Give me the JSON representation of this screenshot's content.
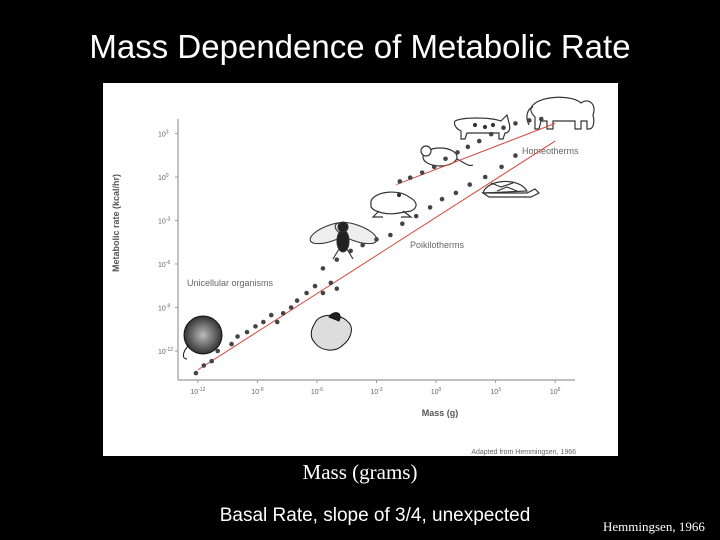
{
  "slide": {
    "title": "Mass Dependence of Metabolic Rate",
    "caption": "Mass (grams)",
    "subcaption": "Basal Rate, slope of 3/4, unexpected",
    "credit": "Hemmingsen, 1966"
  },
  "chart_data": {
    "type": "scatter",
    "xlabel": "Mass (g)",
    "ylabel": "Metabolic rate (kcal/hr)",
    "x_scale": "log",
    "y_scale": "log",
    "xlim": [
      1e-13,
      10000000.0
    ],
    "ylim": [
      1e-14,
      10000.0
    ],
    "x_ticks": [
      {
        "value": 1e-12,
        "base": "10",
        "exp": "-12"
      },
      {
        "value": 1e-09,
        "base": "10",
        "exp": "-9"
      },
      {
        "value": 1e-06,
        "base": "10",
        "exp": "-6"
      },
      {
        "value": 0.001,
        "base": "10",
        "exp": "-3"
      },
      {
        "value": 1,
        "base": "10",
        "exp": "0"
      },
      {
        "value": 1000.0,
        "base": "10",
        "exp": "3"
      },
      {
        "value": 1000000.0,
        "base": "10",
        "exp": "6"
      }
    ],
    "y_ticks": [
      {
        "value": 1000.0,
        "base": "10",
        "exp": "3"
      },
      {
        "value": 1,
        "base": "10",
        "exp": "0"
      },
      {
        "value": 0.001,
        "base": "10",
        "exp": "-3"
      },
      {
        "value": 1e-06,
        "base": "10",
        "exp": "-6"
      },
      {
        "value": 1e-09,
        "base": "10",
        "exp": "-9"
      },
      {
        "value": 1e-12,
        "base": "10",
        "exp": "-12"
      }
    ],
    "annotations": {
      "homeotherms": "Homeotherms",
      "poikilotherms": "Poikilotherms",
      "unicellular": "Unicellular organisms",
      "source": "Adapted from Hemmingsen, 1966"
    },
    "fit_lines": [
      {
        "group": "Homeotherms",
        "color": "#d2483b",
        "points": [
          [
            0.01,
            0.3
          ],
          [
            1000000.0,
            5000
          ]
        ]
      },
      {
        "group": "Unicellular organisms and Poikilotherms",
        "color": "#d2483b",
        "points": [
          [
            1e-12,
            5e-14
          ],
          [
            1000000.0,
            300
          ]
        ]
      }
    ],
    "series": [
      {
        "name": "Homeotherms",
        "color": "#444444",
        "points": [
          [
            0.015,
            0.5
          ],
          [
            0.05,
            0.9
          ],
          [
            0.2,
            2
          ],
          [
            0.8,
            5
          ],
          [
            3,
            18
          ],
          [
            12,
            50
          ],
          [
            40,
            120
          ],
          [
            150,
            300
          ],
          [
            600,
            900
          ],
          [
            2500,
            2500
          ],
          [
            10000,
            5000
          ],
          [
            50000,
            8000
          ],
          [
            200000,
            10000
          ]
        ]
      },
      {
        "name": "Poikilotherms",
        "color": "#444444",
        "points": [
          [
            2e-06,
            5e-07
          ],
          [
            1e-05,
            2e-06
          ],
          [
            5e-05,
            8e-06
          ],
          [
            0.0002,
            2e-05
          ],
          [
            0.001,
            5e-05
          ],
          [
            0.005,
            0.0001
          ],
          [
            0.02,
            0.0006
          ],
          [
            0.1,
            0.002
          ],
          [
            0.5,
            0.008
          ],
          [
            2,
            0.03
          ],
          [
            10,
            0.08
          ],
          [
            50,
            0.3
          ],
          [
            300,
            1
          ],
          [
            2000,
            5
          ],
          [
            10000,
            30
          ]
        ]
      },
      {
        "name": "Unicellular organisms",
        "color": "#444444",
        "points": [
          [
            8e-13,
            3e-14
          ],
          [
            2e-12,
            1e-13
          ],
          [
            5e-12,
            2e-13
          ],
          [
            1e-11,
            1e-12
          ],
          [
            5e-11,
            3e-12
          ],
          [
            1e-10,
            1e-11
          ],
          [
            3e-10,
            2e-11
          ],
          [
            8e-10,
            5e-11
          ],
          [
            2e-09,
            1e-10
          ],
          [
            5e-09,
            3e-10
          ],
          [
            1e-08,
            1e-10
          ],
          [
            2e-08,
            4e-10
          ],
          [
            5e-08,
            1e-09
          ],
          [
            1e-07,
            3e-09
          ],
          [
            3e-07,
            1e-08
          ],
          [
            8e-07,
            3e-08
          ],
          [
            2e-06,
            1e-08
          ],
          [
            5e-06,
            5e-08
          ],
          [
            1e-05,
            2e-08
          ]
        ]
      }
    ]
  }
}
